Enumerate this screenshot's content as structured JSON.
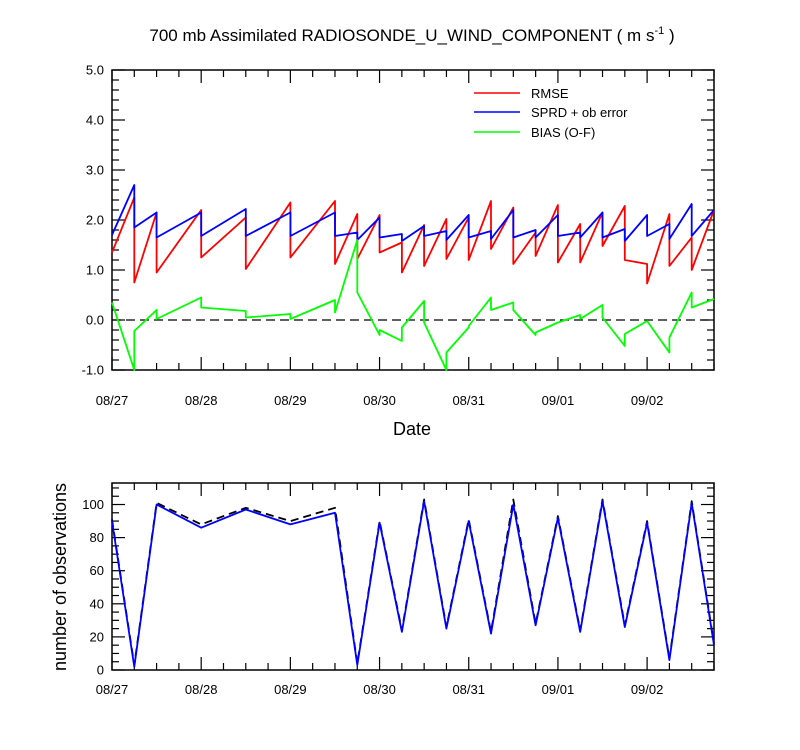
{
  "chart_data": [
    {
      "type": "line",
      "title": "700 mb Assimilated RADIOSONDE_U_WIND_COMPONENT ( m s",
      "title_sup": "-1",
      "title_end": " )",
      "xlabel": "Date",
      "ylabel": "",
      "ylim": [
        -1,
        5
      ],
      "yticks": [
        "-1.0",
        "0.0",
        "1.0",
        "2.0",
        "3.0",
        "4.0",
        "5.0"
      ],
      "ytick_values": [
        -1,
        0,
        1,
        2,
        3,
        4,
        5
      ],
      "x_range": [
        "08/27 00Z",
        "08/30 00Z"
      ],
      "xticks": [
        "08/27",
        "08/28",
        "08/29",
        "08/30",
        "08/31",
        "09/01",
        "09/02"
      ],
      "grid": false,
      "legend_position": "top-right",
      "zero_line": "dashed",
      "series": [
        {
          "name": "RMSE",
          "color": "#ff0000",
          "x": [
            0,
            0.25,
            0.25,
            0.5,
            0.5,
            1.0,
            1.0,
            1.5,
            1.5,
            2.0,
            2.0,
            2.5,
            2.5,
            2.75,
            2.75,
            3.0,
            3.0,
            3.25,
            3.25,
            3.5,
            3.5,
            3.75,
            3.75,
            4.0,
            4.0,
            4.25,
            4.25,
            4.5,
            4.5,
            4.75,
            4.75,
            5.0,
            5.0,
            5.25,
            5.25,
            5.5,
            5.5,
            5.75,
            5.75,
            6.0,
            6.0,
            6.25,
            6.25,
            6.5,
            6.5,
            6.75
          ],
          "values": [
            1.35,
            2.45,
            0.75,
            2.15,
            0.95,
            2.2,
            1.25,
            2.05,
            1.02,
            2.35,
            1.25,
            2.38,
            1.12,
            2.12,
            1.22,
            2.1,
            1.35,
            1.55,
            0.95,
            1.9,
            1.08,
            2.02,
            1.22,
            2.05,
            1.2,
            2.38,
            1.42,
            2.25,
            1.12,
            1.75,
            1.28,
            2.3,
            1.15,
            1.92,
            1.15,
            2.15,
            1.48,
            2.28,
            1.2,
            1.12,
            0.73,
            2.12,
            1.08,
            1.65,
            1.0,
            2.2
          ]
        },
        {
          "name": "SPRD + ob error",
          "color": "#0000ff",
          "x": [
            0,
            0.25,
            0.25,
            0.5,
            0.5,
            1.0,
            1.0,
            1.5,
            1.5,
            2.0,
            2.0,
            2.5,
            2.5,
            2.75,
            2.75,
            3.0,
            3.0,
            3.25,
            3.25,
            3.5,
            3.5,
            3.75,
            3.75,
            4.0,
            4.0,
            4.25,
            4.25,
            4.5,
            4.5,
            4.75,
            4.75,
            5.0,
            5.0,
            5.25,
            5.25,
            5.5,
            5.5,
            5.75,
            5.75,
            6.0,
            6.0,
            6.25,
            6.25,
            6.5,
            6.5,
            6.75
          ],
          "values": [
            1.7,
            2.7,
            1.85,
            2.15,
            1.65,
            2.15,
            1.68,
            2.22,
            1.68,
            2.15,
            1.68,
            2.15,
            1.68,
            1.75,
            1.6,
            2.05,
            1.65,
            1.72,
            1.58,
            1.88,
            1.68,
            1.78,
            1.6,
            2.1,
            1.65,
            1.78,
            1.62,
            2.2,
            1.65,
            1.8,
            1.65,
            2.1,
            1.68,
            1.75,
            1.65,
            2.15,
            1.65,
            1.82,
            1.58,
            2.1,
            1.68,
            1.92,
            1.62,
            2.32,
            1.68,
            2.2
          ]
        },
        {
          "name": "BIAS (O-F)",
          "color": "#00ff00",
          "x": [
            0,
            0.25,
            0.25,
            0.5,
            0.5,
            1.0,
            1.0,
            1.5,
            1.5,
            2.0,
            2.0,
            2.5,
            2.5,
            2.75,
            2.75,
            3.0,
            3.0,
            3.25,
            3.25,
            3.5,
            3.5,
            3.75,
            3.75,
            4.0,
            4.0,
            4.25,
            4.25,
            4.5,
            4.5,
            4.75,
            4.75,
            5.0,
            5.0,
            5.25,
            5.25,
            5.5,
            5.5,
            5.75,
            5.75,
            6.0,
            6.0,
            6.25,
            6.25,
            6.5,
            6.5,
            6.75
          ],
          "values": [
            0.35,
            -1.0,
            -0.22,
            0.2,
            0.02,
            0.45,
            0.25,
            0.18,
            0.05,
            0.12,
            0.02,
            0.4,
            0.15,
            1.6,
            0.55,
            -0.3,
            -0.2,
            -0.42,
            -0.15,
            0.38,
            -0.05,
            -1.0,
            -0.65,
            -0.15,
            -0.12,
            0.45,
            0.2,
            0.35,
            0.2,
            -0.3,
            -0.25,
            -0.05,
            -0.05,
            0.1,
            0.02,
            0.3,
            0.05,
            -0.52,
            -0.28,
            -0.02,
            -0.02,
            -0.65,
            -0.35,
            0.55,
            0.25,
            0.42
          ]
        }
      ]
    },
    {
      "type": "line",
      "title": "",
      "xlabel": "",
      "ylabel": "number of observations",
      "ylim": [
        0,
        113
      ],
      "yticks": [
        "0",
        "20",
        "40",
        "60",
        "80",
        "100"
      ],
      "ytick_values": [
        0,
        20,
        40,
        60,
        80,
        100
      ],
      "xticks": [
        "08/27",
        "08/28",
        "08/29",
        "08/30",
        "08/31",
        "09/01",
        "09/02"
      ],
      "grid": false,
      "x": [
        0,
        0.25,
        0.5,
        1.0,
        1.5,
        2.0,
        2.5,
        2.75,
        3.0,
        3.25,
        3.5,
        3.75,
        4.0,
        4.25,
        4.5,
        4.75,
        5.0,
        5.25,
        5.5,
        5.75,
        6.0,
        6.25,
        6.5,
        6.75
      ],
      "series": [
        {
          "color": "#0000ff",
          "style": "solid",
          "values": [
            90,
            2,
            100,
            86,
            97,
            88,
            95,
            3,
            89,
            23,
            102,
            25,
            90,
            22,
            100,
            27,
            92,
            23,
            102,
            26,
            89,
            6,
            101,
            15
          ]
        },
        {
          "color": "#000000",
          "style": "dashed",
          "values": [
            91,
            3,
            101,
            88,
            98,
            90,
            98,
            4,
            90,
            24,
            103,
            26,
            91,
            23,
            103,
            28,
            93,
            24,
            103,
            27,
            90,
            7,
            102,
            16
          ]
        }
      ]
    }
  ]
}
